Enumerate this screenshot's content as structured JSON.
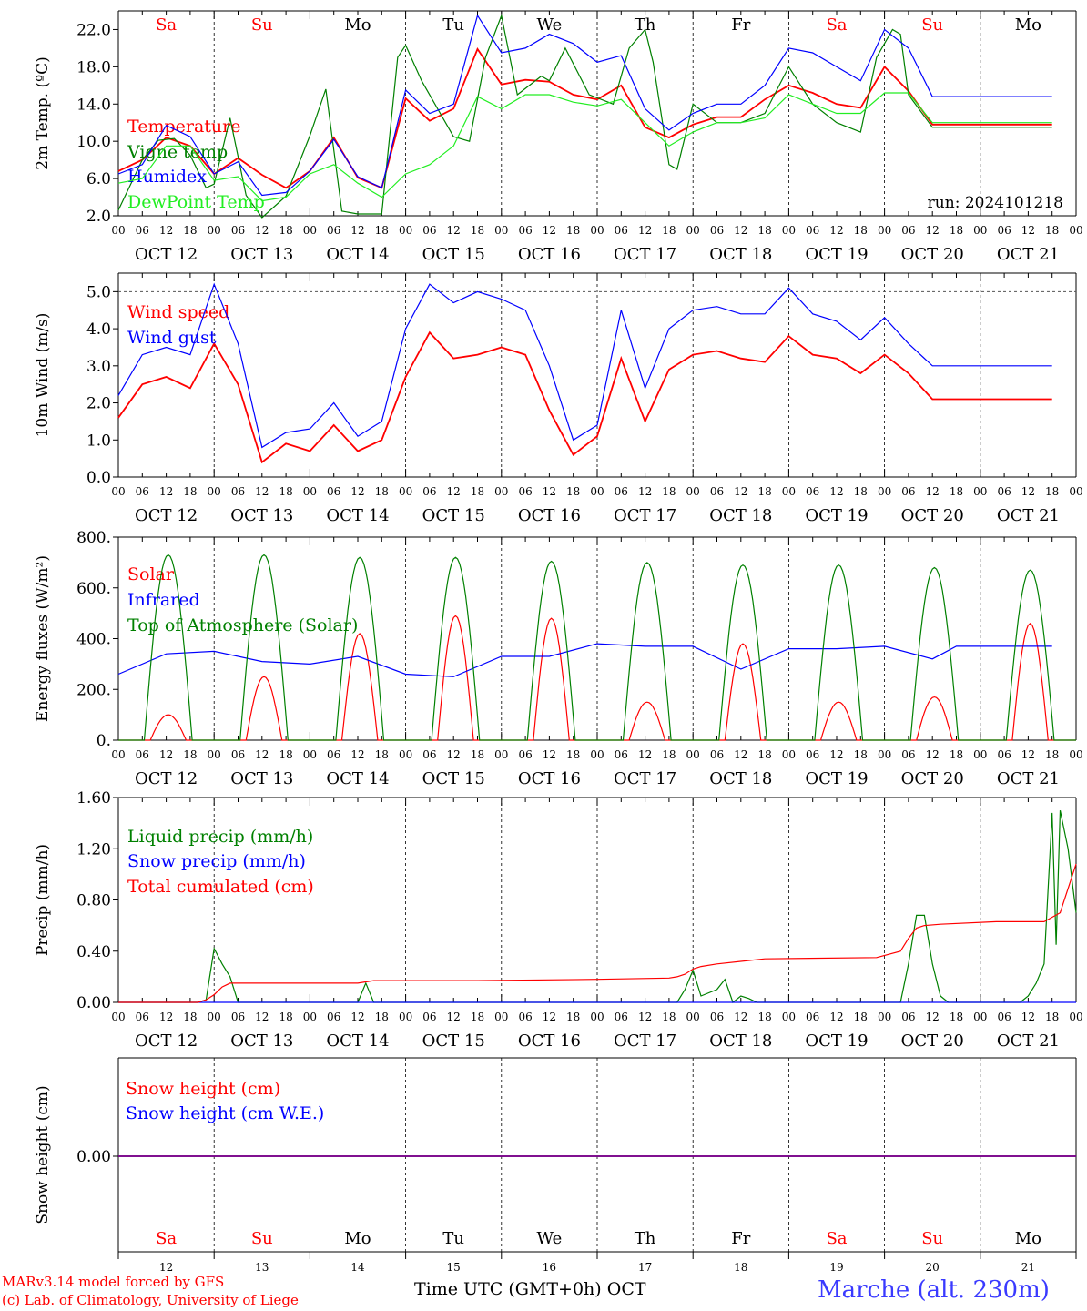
{
  "run_label": "run: 2024101218",
  "day_names": [
    "Sa",
    "Su",
    "Mo",
    "Tu",
    "We",
    "Th",
    "Fr",
    "Sa",
    "Su",
    "Mo"
  ],
  "weekend_days": [
    "Sa",
    "Su"
  ],
  "hour_ticks": [
    "00",
    "06",
    "12",
    "18"
  ],
  "date_labels": [
    "OCT 12",
    "OCT 13",
    "OCT 14",
    "OCT 15",
    "OCT 16",
    "OCT 17",
    "OCT 18",
    "OCT 19",
    "OCT 20",
    "OCT 21"
  ],
  "bottom_day_numbers": [
    "12",
    "13",
    "14",
    "15",
    "16",
    "17",
    "18",
    "19",
    "20",
    "21"
  ],
  "x_axis_title": "Time UTC (GMT+0h)",
  "x_axis_month": "OCT",
  "credit_line1": "MARv3.14 model forced by GFS",
  "credit_line2": "(c) Lab. of Climatology, University of Liege",
  "station": "Marche (alt. 230m)",
  "colors": {
    "red": "#ff0000",
    "green": "#008000",
    "blue": "#0000ff",
    "lightgreen": "#22ee22",
    "purple": "#800080",
    "station": "#3a3aff"
  },
  "chart_data": [
    {
      "type": "line",
      "ylabel": "2m Temp. (ºC)",
      "ylim": [
        2.0,
        24.0
      ],
      "yticks": [
        "2.0",
        "6.0",
        "10.0",
        "14.0",
        "18.0",
        "22.0"
      ],
      "x_unit": "hours since OCT 12 00 UTC",
      "series": [
        {
          "name": "Temperature",
          "color": "red",
          "x": [
            0,
            6,
            12,
            18,
            24,
            30,
            36,
            42,
            48,
            54,
            60,
            66,
            72,
            78,
            84,
            90,
            96,
            102,
            108,
            114,
            120,
            126,
            132,
            138,
            144,
            150,
            156,
            162,
            168,
            174,
            180,
            186,
            192,
            198,
            204,
            210,
            216,
            222,
            228,
            234
          ],
          "y": [
            6.8,
            8.0,
            10.4,
            9.5,
            6.5,
            8.2,
            6.4,
            5.0,
            6.8,
            10.4,
            6.1,
            5.0,
            14.6,
            12.2,
            13.5,
            19.9,
            16.1,
            16.6,
            16.4,
            15.0,
            14.5,
            16.0,
            11.5,
            10.4,
            11.8,
            12.6,
            12.6,
            14.5,
            16.0,
            15.2,
            14.0,
            13.6,
            18.0,
            15.4,
            11.8,
            11.8,
            11.8,
            11.8,
            11.8,
            11.8
          ]
        },
        {
          "name": "Vigne temp",
          "color": "green",
          "x": [
            0,
            6,
            10,
            14,
            18,
            22,
            24,
            28,
            32,
            36,
            42,
            48,
            52,
            56,
            60,
            66,
            70,
            72,
            76,
            84,
            88,
            92,
            96,
            100,
            106,
            108,
            112,
            118,
            124,
            128,
            132,
            134,
            138,
            140,
            144,
            150,
            156,
            162,
            168,
            174,
            180,
            186,
            190,
            194,
            196,
            198,
            204,
            210,
            216,
            222,
            228,
            234
          ],
          "y": [
            2.6,
            8.0,
            10.1,
            10.3,
            8.5,
            5.0,
            5.4,
            12.5,
            4.2,
            1.8,
            4.1,
            10.6,
            15.6,
            2.5,
            2.2,
            2.2,
            19.0,
            20.3,
            16.5,
            10.5,
            10.0,
            19.0,
            23.5,
            15.0,
            17.0,
            16.5,
            20.0,
            15.0,
            14.0,
            20.0,
            22.0,
            18.5,
            7.5,
            7.0,
            14.0,
            12.0,
            12.0,
            13.0,
            18.0,
            14.0,
            12.0,
            11.0,
            19.0,
            22.0,
            21.5,
            15.0,
            11.5,
            11.5,
            11.5,
            11.5,
            11.5,
            11.5
          ]
        },
        {
          "name": "Humidex",
          "color": "blue",
          "x": [
            0,
            6,
            12,
            18,
            24,
            30,
            36,
            42,
            48,
            54,
            60,
            66,
            72,
            78,
            84,
            90,
            96,
            102,
            108,
            114,
            120,
            126,
            132,
            138,
            144,
            150,
            156,
            162,
            168,
            174,
            180,
            186,
            192,
            198,
            204,
            210,
            216,
            222,
            228,
            234
          ],
          "y": [
            6.5,
            7.5,
            11.7,
            10.5,
            6.5,
            7.8,
            4.2,
            4.5,
            6.8,
            10.2,
            6.2,
            5.0,
            15.5,
            13.0,
            14.0,
            23.5,
            19.5,
            20.0,
            21.5,
            20.5,
            18.5,
            19.2,
            13.5,
            11.2,
            13.0,
            14.0,
            14.0,
            16.0,
            20.0,
            19.5,
            18.0,
            16.5,
            22.0,
            20.0,
            14.8,
            14.8,
            14.8,
            14.8,
            14.8,
            14.8
          ]
        },
        {
          "name": "DewPoint Temp",
          "color": "lightgreen",
          "x": [
            0,
            6,
            12,
            18,
            24,
            30,
            36,
            42,
            48,
            54,
            60,
            66,
            72,
            78,
            84,
            90,
            96,
            102,
            108,
            114,
            120,
            126,
            132,
            138,
            144,
            150,
            156,
            162,
            168,
            174,
            180,
            186,
            192,
            198,
            204,
            210,
            216,
            222,
            228,
            234
          ],
          "y": [
            5.5,
            6.0,
            9.5,
            9.5,
            5.8,
            6.2,
            3.6,
            4.0,
            6.5,
            7.5,
            5.5,
            4.0,
            6.5,
            7.5,
            9.5,
            14.8,
            13.5,
            15.0,
            15.0,
            14.2,
            13.8,
            14.5,
            12.0,
            9.5,
            11.0,
            12.0,
            12.0,
            12.5,
            15.0,
            14.0,
            13.0,
            13.0,
            15.2,
            15.2,
            12.0,
            12.0,
            12.0,
            12.0,
            12.0,
            12.0
          ]
        }
      ]
    },
    {
      "type": "line",
      "ylabel": "10m Wind (m/s)",
      "ylim": [
        0.0,
        5.5
      ],
      "yticks": [
        "0.0",
        "1.0",
        "2.0",
        "3.0",
        "4.0",
        "5.0"
      ],
      "series": [
        {
          "name": "Wind speed",
          "color": "red",
          "x": [
            0,
            6,
            12,
            18,
            24,
            30,
            36,
            42,
            48,
            54,
            60,
            66,
            72,
            78,
            84,
            90,
            96,
            102,
            108,
            114,
            120,
            126,
            132,
            138,
            144,
            150,
            156,
            162,
            168,
            174,
            180,
            186,
            192,
            198,
            204,
            210,
            216,
            222,
            228,
            234
          ],
          "y": [
            1.6,
            2.5,
            2.7,
            2.4,
            3.6,
            2.5,
            0.4,
            0.9,
            0.7,
            1.4,
            0.7,
            1.0,
            2.7,
            3.9,
            3.2,
            3.3,
            3.5,
            3.3,
            1.8,
            0.6,
            1.1,
            3.2,
            1.5,
            2.9,
            3.3,
            3.4,
            3.2,
            3.1,
            3.8,
            3.3,
            3.2,
            2.8,
            3.3,
            2.8,
            2.1,
            2.1,
            2.1,
            2.1,
            2.1,
            2.1
          ]
        },
        {
          "name": "Wind gust",
          "color": "blue",
          "x": [
            0,
            6,
            12,
            18,
            24,
            30,
            36,
            42,
            48,
            54,
            60,
            66,
            72,
            78,
            84,
            90,
            96,
            102,
            108,
            114,
            120,
            126,
            132,
            138,
            144,
            150,
            156,
            162,
            168,
            174,
            180,
            186,
            192,
            198,
            204,
            210,
            216,
            222,
            228,
            234
          ],
          "y": [
            2.2,
            3.3,
            3.5,
            3.3,
            5.2,
            3.6,
            0.8,
            1.2,
            1.3,
            2.0,
            1.1,
            1.5,
            4.0,
            5.2,
            4.7,
            5.0,
            4.8,
            4.5,
            3.0,
            1.0,
            1.4,
            4.5,
            2.4,
            4.0,
            4.5,
            4.6,
            4.4,
            4.4,
            5.1,
            4.4,
            4.2,
            3.7,
            4.3,
            3.6,
            3.0,
            3.0,
            3.0,
            3.0,
            3.0,
            3.0
          ]
        }
      ],
      "hline": 5.0
    },
    {
      "type": "line",
      "ylabel": "Energy fluxes (W/m²)",
      "ylim": [
        0,
        800
      ],
      "yticks": [
        "0.",
        "200.",
        "400.",
        "600.",
        "800."
      ],
      "series": [
        {
          "name": "Solar",
          "color": "red",
          "daily_peak": [
            100,
            250,
            420,
            490,
            480,
            150,
            380,
            150,
            170,
            460
          ]
        },
        {
          "name": "Infrared",
          "color": "blue",
          "x": [
            0,
            12,
            24,
            36,
            48,
            60,
            72,
            84,
            96,
            108,
            120,
            132,
            144,
            156,
            168,
            180,
            192,
            204,
            210,
            216,
            222,
            228,
            234
          ],
          "y": [
            260,
            340,
            350,
            310,
            300,
            330,
            260,
            250,
            330,
            330,
            380,
            370,
            370,
            280,
            360,
            360,
            370,
            320,
            370,
            370,
            370,
            370,
            370
          ]
        },
        {
          "name": "Top of Atmosphere (Solar)",
          "color": "green",
          "daily_peak": [
            730,
            730,
            720,
            720,
            705,
            700,
            690,
            690,
            680,
            670
          ]
        }
      ]
    },
    {
      "type": "line",
      "ylabel": "Precip (mm/h)",
      "ylim": [
        0.0,
        1.6
      ],
      "yticks": [
        "0.00",
        "0.40",
        "0.80",
        "1.20",
        "1.60"
      ],
      "series": [
        {
          "name": "Liquid precip (mm/h)",
          "color": "green",
          "x": [
            0,
            20,
            22,
            24,
            26,
            28,
            30,
            60,
            62,
            64,
            140,
            142,
            144,
            146,
            150,
            152,
            154,
            156,
            158,
            160,
            180,
            196,
            198,
            200,
            202,
            204,
            206,
            208,
            210,
            220,
            226,
            228,
            230,
            232,
            234,
            235,
            236,
            238,
            240
          ],
          "y": [
            0,
            0,
            0.02,
            0.42,
            0.3,
            0.2,
            0,
            0,
            0.15,
            0,
            0,
            0.1,
            0.25,
            0.05,
            0.1,
            0.18,
            0,
            0.05,
            0.03,
            0,
            0,
            0,
            0.3,
            0.68,
            0.68,
            0.3,
            0.05,
            0,
            0,
            0,
            0,
            0.05,
            0.15,
            0.3,
            1.48,
            0.45,
            1.5,
            1.2,
            0.7
          ]
        },
        {
          "name": "Snow precip (mm/h)",
          "color": "blue",
          "x": [
            0,
            240
          ],
          "y": [
            0,
            0
          ]
        },
        {
          "name": "Total cumulated (cm)",
          "color": "red",
          "x": [
            0,
            20,
            22,
            24,
            26,
            28,
            48,
            60,
            62,
            64,
            90,
            120,
            138,
            140,
            142,
            144,
            146,
            150,
            156,
            162,
            190,
            196,
            198,
            200,
            202,
            206,
            220,
            232,
            236,
            240
          ],
          "y": [
            0,
            0,
            0.02,
            0.06,
            0.12,
            0.15,
            0.15,
            0.15,
            0.16,
            0.17,
            0.17,
            0.18,
            0.19,
            0.2,
            0.22,
            0.26,
            0.28,
            0.3,
            0.32,
            0.34,
            0.35,
            0.4,
            0.5,
            0.58,
            0.6,
            0.61,
            0.63,
            0.63,
            0.7,
            1.08
          ]
        }
      ]
    },
    {
      "type": "line",
      "ylabel": "Snow height (cm)",
      "yticks": [
        "0.00"
      ],
      "series": [
        {
          "name": "Snow height (cm)",
          "color": "red",
          "x": [
            0,
            240
          ],
          "y": [
            0,
            0
          ]
        },
        {
          "name": "Snow height (cm W.E.)",
          "color": "blue",
          "x": [
            0,
            240
          ],
          "y": [
            0,
            0
          ]
        }
      ]
    }
  ]
}
